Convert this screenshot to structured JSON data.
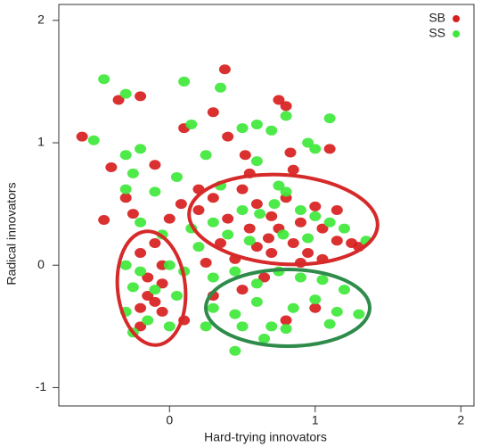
{
  "chart_data": {
    "type": "scatter",
    "xlabel": "Hard-trying innovators",
    "ylabel": "Radical innovators",
    "xlim": [
      -0.76,
      2.09
    ],
    "ylim": [
      -1.15,
      2.13
    ],
    "xticks": [
      0,
      1,
      2
    ],
    "yticks": [
      -1,
      0,
      1,
      2
    ],
    "legend": "top-right",
    "series": [
      {
        "name": "SB",
        "color": "#d81e1e",
        "x": [
          -0.6,
          -0.35,
          -0.2,
          0.38,
          0.3,
          0.75,
          0.8,
          -0.4,
          -0.1,
          0.1,
          0.4,
          0.52,
          0.83,
          0.85,
          1.1,
          -0.45,
          -0.3,
          -0.25,
          0,
          0.08,
          0.2,
          0.3,
          0.4,
          0.5,
          0.55,
          0.6,
          0.7,
          0.75,
          0.8,
          0.9,
          1.0,
          1.05,
          1.15,
          1.25,
          1.3,
          0.35,
          0.45,
          0.6,
          0.7,
          0.85,
          0.95,
          1.05,
          0.25,
          -0.1,
          -0.2,
          -0.05,
          -0.15,
          -0.05,
          -0.15,
          -0.1,
          -0.2,
          -0.05,
          -0.2,
          0.1,
          0.3,
          0.5,
          0.65,
          0.8,
          1.0,
          0.2,
          0.55,
          0.68,
          0.9,
          1.15
        ],
        "y": [
          1.05,
          1.35,
          1.38,
          1.6,
          1.25,
          1.35,
          1.3,
          0.8,
          0.82,
          1.12,
          1.05,
          0.9,
          0.92,
          0.78,
          0.95,
          0.37,
          0.55,
          0.42,
          0.38,
          0.5,
          0.45,
          0.55,
          0.38,
          0.62,
          0.3,
          0.5,
          0.4,
          0.3,
          0.55,
          0.35,
          0.48,
          0.3,
          0.45,
          0.18,
          0.15,
          0.18,
          0.05,
          0.15,
          0.1,
          0.18,
          0.1,
          0.05,
          0.02,
          0.18,
          0.1,
          0,
          -0.1,
          -0.15,
          -0.25,
          -0.3,
          -0.35,
          -0.38,
          -0.5,
          -0.45,
          -0.25,
          -0.2,
          -0.1,
          -0.45,
          -0.35,
          0.62,
          0.75,
          0.22,
          0.02,
          0.2
        ]
      },
      {
        "name": "SS",
        "color": "#3ee83a",
        "x": [
          -0.45,
          -0.3,
          0.1,
          -0.52,
          0.35,
          0.15,
          0.5,
          0.6,
          0.7,
          0.8,
          1.1,
          -0.3,
          -0.2,
          0.25,
          0.6,
          0.95,
          1.0,
          -0.25,
          0.05,
          -0.3,
          -0.1,
          0.35,
          0.75,
          0.8,
          -0.2,
          -0.05,
          0.15,
          0.3,
          0.5,
          0.62,
          0.72,
          0.9,
          1.0,
          1.1,
          1.2,
          0.4,
          0.55,
          0.78,
          0.95,
          -0.3,
          -0.2,
          0,
          0.1,
          -0.25,
          -0.1,
          0.05,
          -0.3,
          -0.15,
          0,
          -0.25,
          0.3,
          0.45,
          0.6,
          0.75,
          0.9,
          1.05,
          1.2,
          0.3,
          0.45,
          0.6,
          0.7,
          0.85,
          1.0,
          1.15,
          1.3,
          0.5,
          0.65,
          0.8,
          1.1,
          0.45,
          0.25,
          0.2,
          1.35
        ],
        "y": [
          1.52,
          1.4,
          1.5,
          1.02,
          1.45,
          1.15,
          1.12,
          1.15,
          1.1,
          1.22,
          1.2,
          0.9,
          0.95,
          0.9,
          0.85,
          1.0,
          0.95,
          0.75,
          0.72,
          0.62,
          0.6,
          0.65,
          0.65,
          0.6,
          0.35,
          0.25,
          0.3,
          0.35,
          0.45,
          0.42,
          0.5,
          0.45,
          0.4,
          0.35,
          0.3,
          0.25,
          0.2,
          0.25,
          0.22,
          0,
          -0.05,
          0,
          -0.05,
          -0.18,
          -0.2,
          -0.25,
          -0.38,
          -0.45,
          -0.5,
          -0.55,
          -0.1,
          -0.05,
          -0.15,
          -0.05,
          -0.1,
          -0.12,
          -0.2,
          -0.35,
          -0.4,
          -0.3,
          -0.5,
          -0.35,
          -0.28,
          -0.38,
          -0.4,
          -0.5,
          -0.6,
          -0.52,
          -0.48,
          -0.7,
          -0.5,
          0.15,
          0.2
        ]
      }
    ]
  }
}
